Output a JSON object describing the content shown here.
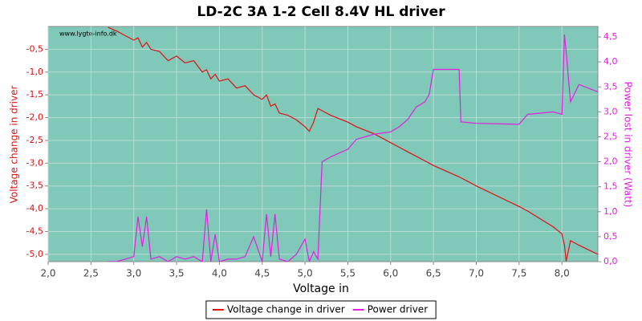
{
  "chart_data": {
    "type": "line",
    "title": "LD-2C 3A 1-2 Cell 8.4V HL driver",
    "watermark": "www.lygte-info.dk",
    "xlabel": "Voltage in",
    "ylabel": "Voltage change in driver",
    "y2label": "Power lost in driver (Watt)",
    "grid": true,
    "legend": "bottom",
    "x": [
      2.7,
      2.8,
      2.9,
      3.0,
      3.05,
      3.1,
      3.15,
      3.2,
      3.3,
      3.4,
      3.5,
      3.6,
      3.7,
      3.8,
      3.85,
      3.9,
      3.95,
      4.0,
      4.1,
      4.2,
      4.3,
      4.4,
      4.5,
      4.55,
      4.6,
      4.65,
      4.7,
      4.8,
      4.9,
      5.0,
      5.05,
      5.1,
      5.15,
      5.2,
      5.3,
      5.5,
      5.6,
      5.8,
      6.0,
      6.1,
      6.2,
      6.3,
      6.4,
      6.45,
      6.5,
      6.8,
      6.82,
      7.0,
      7.5,
      7.6,
      7.9,
      8.0,
      8.03,
      8.05,
      8.1,
      8.2,
      8.42
    ],
    "series": [
      {
        "name": "Voltage change in driver",
        "color": "#e01010",
        "axis": "y",
        "values": [
          -0.02,
          -0.1,
          -0.2,
          -0.3,
          -0.25,
          -0.45,
          -0.35,
          -0.5,
          -0.55,
          -0.75,
          -0.65,
          -0.8,
          -0.75,
          -1.0,
          -0.95,
          -1.15,
          -1.05,
          -1.2,
          -1.15,
          -1.35,
          -1.3,
          -1.5,
          -1.6,
          -1.5,
          -1.75,
          -1.7,
          -1.9,
          -1.95,
          -2.05,
          -2.2,
          -2.3,
          -2.1,
          -1.8,
          -1.85,
          -1.95,
          -2.1,
          -2.2,
          -2.35,
          -2.55,
          -2.65,
          -2.75,
          -2.85,
          -2.95,
          -3.0,
          -3.05,
          -3.3,
          -3.32,
          -3.5,
          -3.95,
          -4.05,
          -4.4,
          -4.55,
          -4.8,
          -5.15,
          -4.7,
          -4.8,
          -5.0
        ]
      },
      {
        "name": "Power driver",
        "color": "#e020e0",
        "axis": "y2",
        "values": [
          0,
          0,
          0.05,
          0.1,
          0.9,
          0.3,
          0.9,
          0.05,
          0.1,
          0.0,
          0.1,
          0.05,
          0.1,
          0.0,
          1.05,
          0.0,
          0.55,
          0.0,
          0.05,
          0.05,
          0.1,
          0.5,
          0.0,
          0.95,
          0.1,
          0.95,
          0.05,
          0.0,
          0.15,
          0.45,
          0.0,
          0.2,
          0.05,
          2.0,
          2.1,
          2.25,
          2.45,
          2.55,
          2.6,
          2.7,
          2.85,
          3.1,
          3.2,
          3.35,
          3.85,
          3.85,
          2.8,
          2.77,
          2.75,
          2.95,
          3.0,
          2.95,
          4.55,
          4.2,
          3.2,
          3.55,
          3.4
        ]
      }
    ],
    "xlim": [
      2.0,
      8.42
    ],
    "xticks": [
      {
        "value": 2.0,
        "label": "2,0"
      },
      {
        "value": 2.5,
        "label": "2,5"
      },
      {
        "value": 3.0,
        "label": "3,0"
      },
      {
        "value": 3.5,
        "label": "3,5"
      },
      {
        "value": 4.0,
        "label": "4,0"
      },
      {
        "value": 4.5,
        "label": "4,5"
      },
      {
        "value": 5.0,
        "label": "5,0"
      },
      {
        "value": 5.5,
        "label": "5,5"
      },
      {
        "value": 6.0,
        "label": "6,0"
      },
      {
        "value": 6.5,
        "label": "6,5"
      },
      {
        "value": 7.0,
        "label": "7,0"
      },
      {
        "value": 7.5,
        "label": "7,5"
      },
      {
        "value": 8.0,
        "label": "8,0"
      }
    ],
    "ylim": [
      -5.16,
      0
    ],
    "yticks": [
      {
        "value": -0.5,
        "label": "-0,5"
      },
      {
        "value": -1.0,
        "label": "-1,0"
      },
      {
        "value": -1.5,
        "label": "-1,5"
      },
      {
        "value": -2.0,
        "label": "-2,0"
      },
      {
        "value": -2.5,
        "label": "-2,5"
      },
      {
        "value": -3.0,
        "label": "-3,0"
      },
      {
        "value": -3.5,
        "label": "-3,5"
      },
      {
        "value": -4.0,
        "label": "-4,0"
      },
      {
        "value": -4.5,
        "label": "-4,5"
      },
      {
        "value": -5.0,
        "label": "-5,0"
      }
    ],
    "y2lim": [
      0,
      4.71
    ],
    "y2ticks": [
      {
        "value": 0.0,
        "label": "0,0"
      },
      {
        "value": 0.5,
        "label": "0,5"
      },
      {
        "value": 1.0,
        "label": "1,0"
      },
      {
        "value": 1.5,
        "label": "1,5"
      },
      {
        "value": 2.0,
        "label": "2,0"
      },
      {
        "value": 2.5,
        "label": "2,5"
      },
      {
        "value": 3.0,
        "label": "3,0"
      },
      {
        "value": 3.5,
        "label": "3,5"
      },
      {
        "value": 4.0,
        "label": "4,0"
      },
      {
        "value": 4.5,
        "label": "4,5"
      }
    ]
  }
}
